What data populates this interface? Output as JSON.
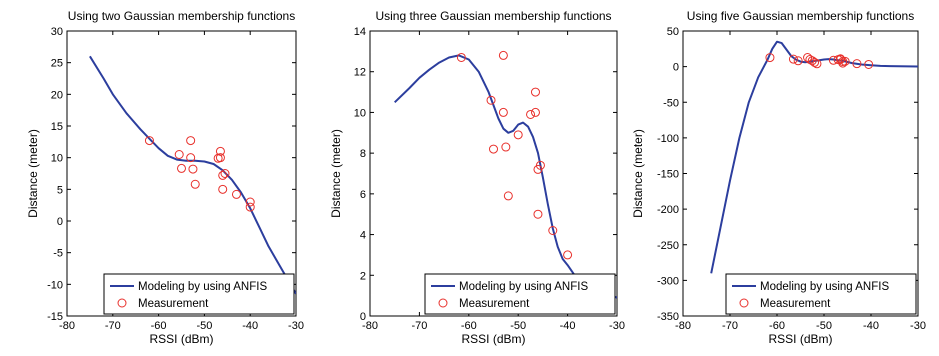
{
  "chart_data": [
    {
      "type": "line",
      "title": "Using two Gaussian membership functions",
      "xlabel": "RSSI (dBm)",
      "ylabel": "Distance (meter)",
      "xlim": [
        -80,
        -30
      ],
      "ylim": [
        -15,
        30
      ],
      "xticks": [
        -80,
        -70,
        -60,
        -50,
        -40,
        -30
      ],
      "yticks": [
        -15,
        -10,
        -5,
        0,
        5,
        10,
        15,
        20,
        25,
        30
      ],
      "grid": false,
      "legend_position": "bottom-right",
      "series": [
        {
          "name": "Modeling by using ANFIS",
          "kind": "line",
          "color": "#2c3e9e",
          "x": [
            -75,
            -72,
            -70,
            -67,
            -64,
            -62,
            -60,
            -58,
            -56,
            -54,
            -52,
            -50,
            -48,
            -46,
            -44,
            -42,
            -40,
            -38,
            -36,
            -34,
            -32,
            -30
          ],
          "y": [
            26,
            22.5,
            20,
            17,
            14.5,
            13,
            11.5,
            10.3,
            9.7,
            9.5,
            9.5,
            9.4,
            9,
            8,
            6.5,
            4.5,
            2,
            -1,
            -4,
            -6.5,
            -9,
            -11.5
          ]
        },
        {
          "name": "Measurement",
          "kind": "scatter",
          "color": "#e8302b",
          "x": [
            -62,
            -55.5,
            -55,
            -53,
            -53,
            -52.5,
            -52,
            -47,
            -46.5,
            -46.5,
            -46,
            -46,
            -45.5,
            -43,
            -40,
            -40
          ],
          "y": [
            12.7,
            10.5,
            8.3,
            12.7,
            10,
            8.2,
            5.8,
            9.9,
            11,
            10,
            7.2,
            5,
            7.5,
            4.2,
            3,
            2.2
          ]
        }
      ]
    },
    {
      "type": "line",
      "title": "Using three Gaussian membership functions",
      "xlabel": "RSSI (dBm)",
      "ylabel": "Distance (meter)",
      "xlim": [
        -80,
        -30
      ],
      "ylim": [
        0,
        14
      ],
      "xticks": [
        -80,
        -70,
        -60,
        -50,
        -40,
        -30
      ],
      "yticks": [
        0,
        2,
        4,
        6,
        8,
        10,
        12,
        14
      ],
      "grid": false,
      "legend_position": "bottom-right",
      "series": [
        {
          "name": "Modeling by using ANFIS",
          "kind": "line",
          "color": "#2c3e9e",
          "x": [
            -75,
            -72,
            -70,
            -68,
            -66,
            -64,
            -62,
            -60,
            -58,
            -56,
            -54,
            -53,
            -52,
            -51,
            -50,
            -49,
            -48,
            -47,
            -46,
            -45,
            -44,
            -43,
            -42,
            -41,
            -40,
            -38,
            -36,
            -34,
            -32,
            -30
          ],
          "y": [
            10.5,
            11.2,
            11.7,
            12.1,
            12.45,
            12.7,
            12.8,
            12.6,
            12,
            11,
            9.7,
            9.2,
            9,
            9.1,
            9.4,
            9.5,
            9.3,
            8.8,
            8,
            6.8,
            5.5,
            4.3,
            3.4,
            2.8,
            2.5,
            1.8,
            1.5,
            1.3,
            1.1,
            0.9
          ]
        },
        {
          "name": "Measurement",
          "kind": "scatter",
          "color": "#e8302b",
          "x": [
            -61.5,
            -55.5,
            -55,
            -53,
            -53,
            -52.5,
            -52,
            -50,
            -47.5,
            -46.5,
            -46.5,
            -46,
            -46,
            -45.5,
            -43,
            -40
          ],
          "y": [
            12.7,
            10.6,
            8.2,
            12.8,
            10,
            8.3,
            5.9,
            8.9,
            9.9,
            11,
            10,
            7.2,
            5,
            7.4,
            4.2,
            3
          ]
        }
      ]
    },
    {
      "type": "line",
      "title": "Using five Gaussian membership functions",
      "xlabel": "RSSI (dBm)",
      "ylabel": "Distance (meter)",
      "xlim": [
        -80,
        -30
      ],
      "ylim": [
        -350,
        50
      ],
      "xticks": [
        -80,
        -70,
        -60,
        -50,
        -40,
        -30
      ],
      "yticks": [
        -350,
        -300,
        -250,
        -200,
        -150,
        -100,
        -50,
        0,
        50
      ],
      "grid": false,
      "legend_position": "bottom-right",
      "series": [
        {
          "name": "Modeling by using ANFIS",
          "kind": "line",
          "color": "#2c3e9e",
          "x": [
            -74,
            -72,
            -70,
            -68,
            -66,
            -64,
            -62,
            -61,
            -60,
            -59,
            -58,
            -57,
            -56,
            -55,
            -54,
            -53,
            -52,
            -51,
            -50,
            -49,
            -48,
            -47,
            -46,
            -45,
            -44,
            -42,
            -40,
            -38,
            -36,
            -34,
            -32,
            -30
          ],
          "y": [
            -290,
            -225,
            -160,
            -100,
            -50,
            -15,
            10,
            25,
            35,
            33,
            24,
            15,
            10,
            7,
            6,
            7,
            8,
            9,
            10,
            10.5,
            10,
            9,
            8,
            6.5,
            5,
            3,
            2,
            1,
            0.8,
            0.5,
            0.3,
            0.2
          ]
        },
        {
          "name": "Measurement",
          "kind": "scatter",
          "color": "#e8302b",
          "x": [
            -61.5,
            -56.5,
            -55.5,
            -53.5,
            -53,
            -52.5,
            -52,
            -51.5,
            -48,
            -47,
            -46.5,
            -46.5,
            -46,
            -46,
            -45.5,
            -43,
            -40.5
          ],
          "y": [
            12.7,
            10.5,
            8.2,
            12.8,
            10,
            8.3,
            5.9,
            4,
            8.9,
            9.9,
            11,
            10,
            7.2,
            5,
            7.4,
            4.2,
            3
          ]
        }
      ]
    }
  ]
}
